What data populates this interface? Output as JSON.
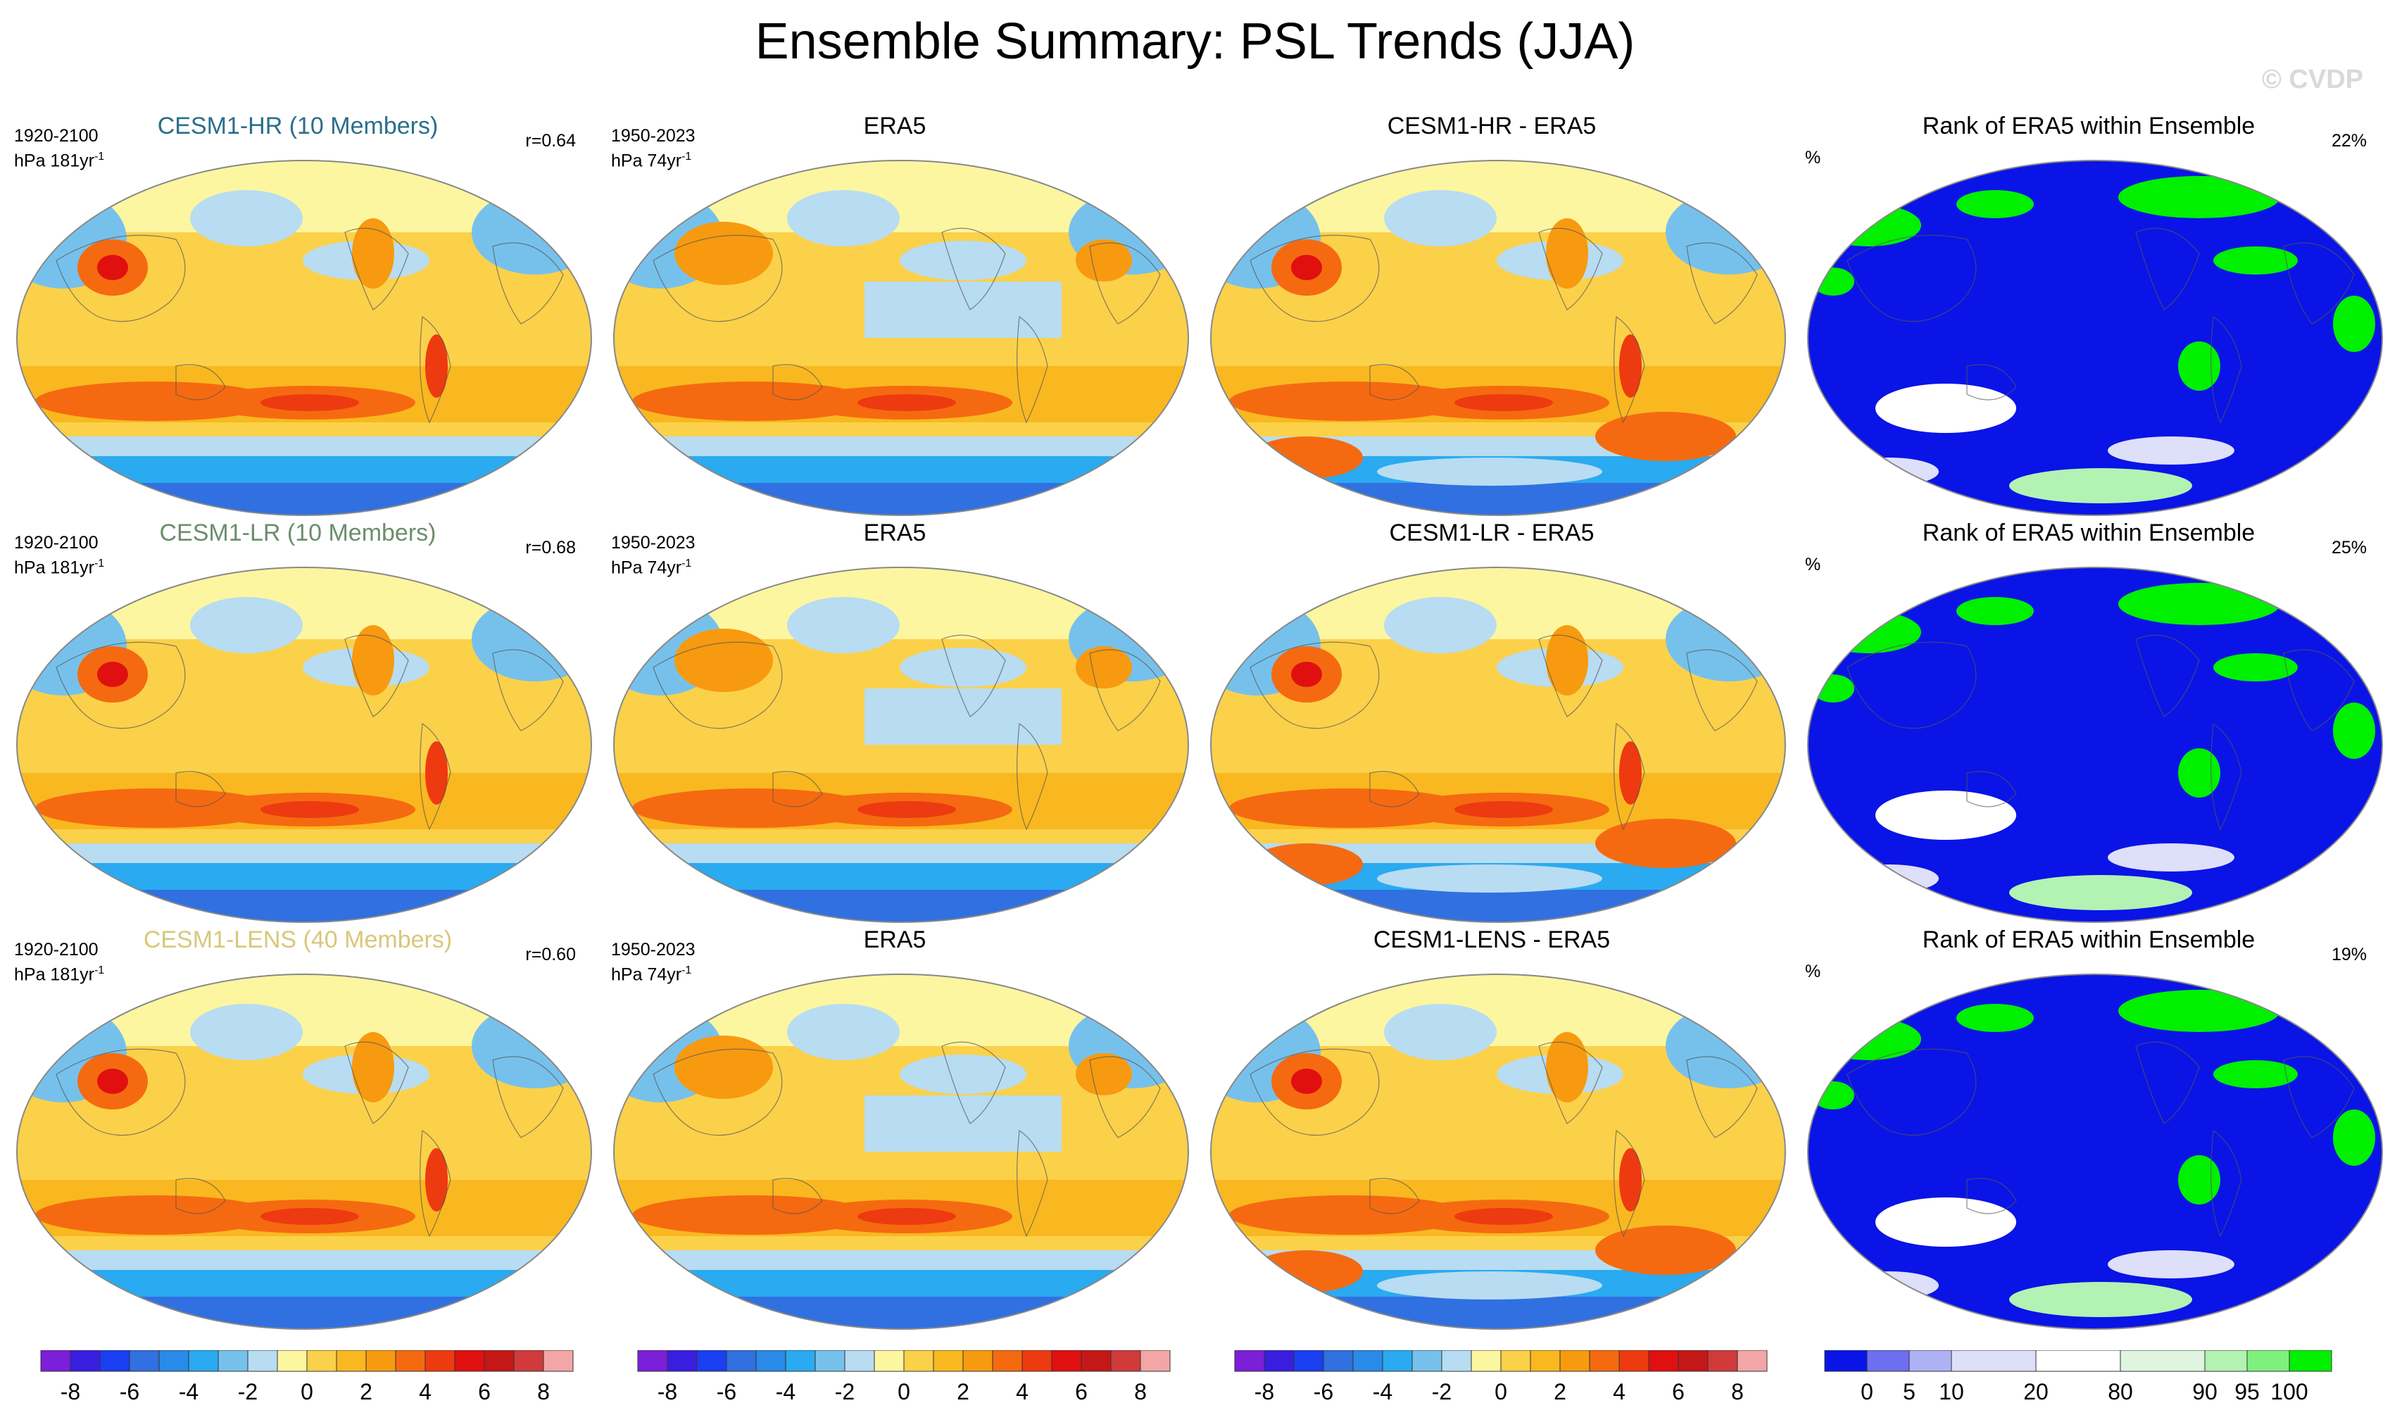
{
  "title": "Ensemble Summary: PSL Trends (JJA)",
  "watermark": "© CVDP",
  "rows": [
    {
      "model_title": "CESM1-HR (10 Members)",
      "model_title_color": "#2a6f8a",
      "model_period": "1920-2100",
      "model_units": "hPa 181yr",
      "model_units_sup": "-1",
      "r": "r=0.64",
      "obs_title": "ERA5",
      "obs_period": "1950-2023",
      "obs_units": "hPa 74yr",
      "obs_units_sup": "-1",
      "diff_title": "CESM1-HR - ERA5",
      "rank_title": "Rank of ERA5 within Ensemble",
      "rank_units": "%",
      "rank_pct": "22%"
    },
    {
      "model_title": "CESM1-LR (10 Members)",
      "model_title_color": "#6b8e6b",
      "model_period": "1920-2100",
      "model_units": "hPa 181yr",
      "model_units_sup": "-1",
      "r": "r=0.68",
      "obs_title": "ERA5",
      "obs_period": "1950-2023",
      "obs_units": "hPa 74yr",
      "obs_units_sup": "-1",
      "diff_title": "CESM1-LR - ERA5",
      "rank_title": "Rank of ERA5 within Ensemble",
      "rank_units": "%",
      "rank_pct": "25%"
    },
    {
      "model_title": "CESM1-LENS (40 Members)",
      "model_title_color": "#d9c77a",
      "model_period": "1920-2100",
      "model_units": "hPa 181yr",
      "model_units_sup": "-1",
      "r": "r=0.60",
      "obs_title": "ERA5",
      "obs_period": "1950-2023",
      "obs_units": "hPa 74yr",
      "obs_units_sup": "-1",
      "diff_title": "CESM1-LENS - ERA5",
      "rank_title": "Rank of ERA5 within Ensemble",
      "rank_units": "%",
      "rank_pct": "19%"
    }
  ],
  "chart_data": {
    "type": "heatmap",
    "trend_colorbar": {
      "levels": [
        "-8",
        "-6",
        "-4",
        "-2",
        "0",
        "2",
        "4",
        "6",
        "8"
      ],
      "colors": [
        "#7b1fd9",
        "#3a1ee0",
        "#1a3ff0",
        "#3070e0",
        "#2a8ae8",
        "#2aaaf0",
        "#76c1ec",
        "#b8dcf2",
        "#fdf6a0",
        "#fbd14a",
        "#f9b820",
        "#f79a10",
        "#f56a10",
        "#ee3a10",
        "#e01010",
        "#c41818",
        "#d03a3a",
        "#f2a6a6"
      ]
    },
    "rank_colorbar": {
      "levels": [
        "0",
        "5",
        "10",
        "20",
        "80",
        "90",
        "95",
        "100"
      ],
      "colors": [
        "#0a14e6",
        "#6e6ef0",
        "#aeb2f4",
        "#dedff8",
        "#ffffff",
        "#dff5df",
        "#b2f2b2",
        "#7ef07e",
        "#00f000"
      ]
    }
  }
}
